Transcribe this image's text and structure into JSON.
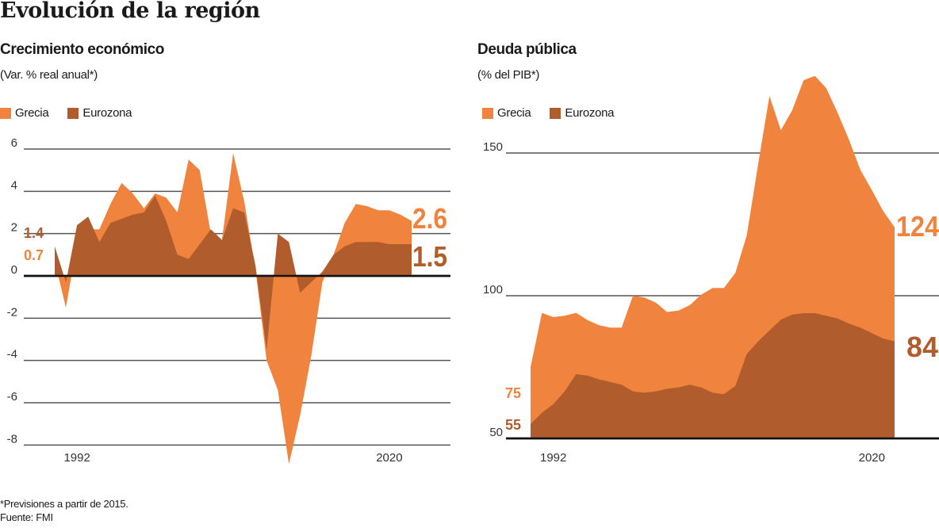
{
  "title": "Evolución de la región",
  "footnote": "*Previsiones a partir de 2015.",
  "source": "Fuente: FMI",
  "colors": {
    "grecia": "#f0843e",
    "eurozona": "#b05c2c",
    "grid": "#555555",
    "zero": "#111111"
  },
  "chart_data": [
    {
      "type": "area",
      "title": "Crecimiento económico",
      "subtitle": "(Var. % real anual*)",
      "legend": [
        "Grecia",
        "Eurozona"
      ],
      "legend_placement": "top-left",
      "grid": true,
      "ylim": [
        -8,
        6
      ],
      "yticks": [
        "6",
        "4",
        "2",
        "0",
        "-2",
        "-4",
        "-6",
        "-8"
      ],
      "yticks_values": [
        6,
        4,
        2,
        0,
        -2,
        -4,
        -6,
        -8
      ],
      "xticks": [
        "1992",
        "2020"
      ],
      "xticks_values": [
        1992,
        2020
      ],
      "x": [
        1990,
        1991,
        1992,
        1993,
        1994,
        1995,
        1996,
        1997,
        1998,
        1999,
        2000,
        2001,
        2002,
        2003,
        2004,
        2005,
        2006,
        2007,
        2008,
        2009,
        2010,
        2011,
        2012,
        2013,
        2014,
        2015,
        2016,
        2017,
        2018,
        2019,
        2020,
        2021,
        2022
      ],
      "series": [
        {
          "name": "Grecia",
          "values": [
            0.7,
            -1.5,
            1.5,
            2.2,
            2.2,
            3.4,
            4.4,
            3.9,
            3.2,
            3.9,
            3.7,
            3.0,
            5.5,
            5.0,
            2.0,
            1.7,
            5.8,
            3.5,
            0.3,
            -4.0,
            -5.4,
            -8.9,
            -6.6,
            -3.8,
            -0.3,
            1.0,
            2.5,
            3.4,
            3.3,
            3.1,
            3.1,
            2.9,
            2.6
          ]
        },
        {
          "name": "Eurozona",
          "values": [
            1.4,
            -0.3,
            2.4,
            2.8,
            1.6,
            2.5,
            2.7,
            2.9,
            3.0,
            3.8,
            2.6,
            1.0,
            0.8,
            1.5,
            2.2,
            1.7,
            3.2,
            3.0,
            0.5,
            -3.5,
            2.0,
            1.6,
            -0.8,
            -0.3,
            0.2,
            1.0,
            1.4,
            1.6,
            1.6,
            1.6,
            1.5,
            1.5,
            1.5
          ]
        }
      ],
      "start_labels": {
        "Eurozona": "1.4",
        "Grecia": "0.7"
      },
      "end_labels": {
        "Grecia": "2.6",
        "Eurozona": "1.5"
      }
    },
    {
      "type": "area",
      "title": "Deuda pública",
      "subtitle": "(% del PIB*)",
      "legend": [
        "Grecia",
        "Eurozona"
      ],
      "legend_placement": "top-left",
      "grid": true,
      "ylim": [
        50,
        180
      ],
      "yticks": [
        "150",
        "100",
        "50"
      ],
      "yticks_values": [
        150,
        100,
        50
      ],
      "xticks": [
        "1992",
        "2020"
      ],
      "xticks_values": [
        1992,
        2020
      ],
      "x": [
        1990,
        1991,
        1992,
        1993,
        1994,
        1995,
        1996,
        1997,
        1998,
        1999,
        2000,
        2001,
        2002,
        2003,
        2004,
        2005,
        2006,
        2007,
        2008,
        2009,
        2010,
        2011,
        2012,
        2013,
        2014,
        2015,
        2016,
        2017,
        2018,
        2019,
        2020,
        2021,
        2022
      ],
      "series": [
        {
          "name": "Grecia",
          "values": [
            75,
            94,
            92.5,
            93,
            94,
            91.5,
            89.7,
            88.8,
            88.8,
            100,
            99.4,
            97.6,
            94.3,
            94.8,
            96.7,
            100.4,
            102.7,
            102.7,
            108,
            121,
            146,
            170,
            158,
            165,
            175.5,
            177,
            172.7,
            164,
            154.6,
            144,
            137,
            129.6,
            124
          ]
        },
        {
          "name": "Eurozona",
          "values": [
            55,
            59,
            62,
            66.5,
            72.5,
            72,
            70.7,
            69.8,
            68.8,
            66.5,
            66,
            66.5,
            67.4,
            67.9,
            68.8,
            67.9,
            66,
            65.5,
            68.4,
            79.5,
            84,
            87.8,
            91.6,
            93.4,
            93.9,
            93.9,
            93,
            92,
            90.2,
            88.8,
            86.9,
            85,
            84
          ]
        }
      ],
      "start_labels": {
        "Grecia": "75",
        "Eurozona": "55"
      },
      "end_labels": {
        "Grecia": "124",
        "Eurozona": "84"
      }
    }
  ]
}
